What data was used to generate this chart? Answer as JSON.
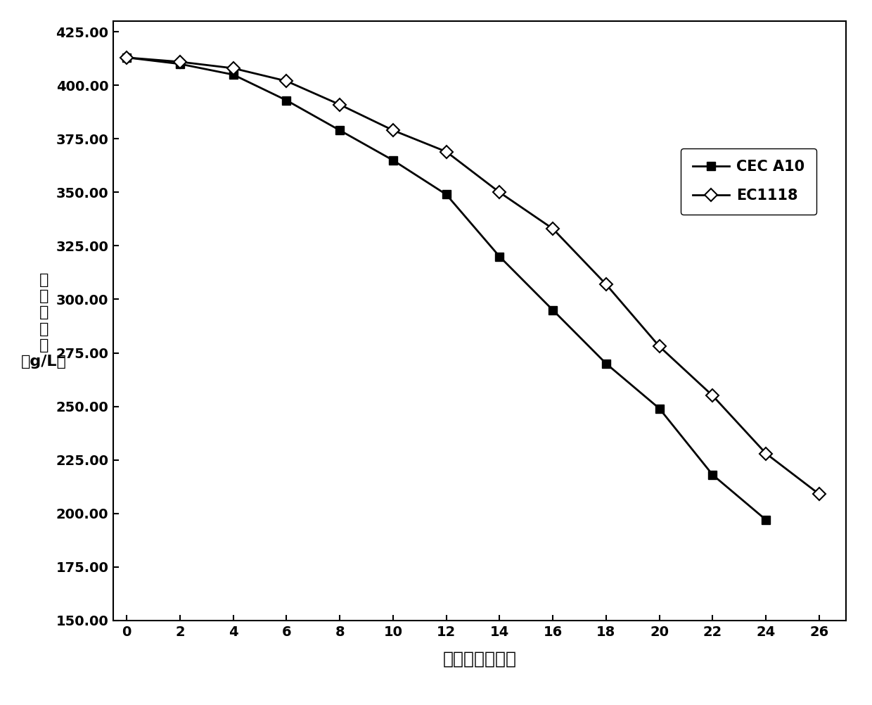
{
  "x": [
    0,
    2,
    4,
    6,
    8,
    10,
    12,
    14,
    16,
    18,
    20,
    22,
    24,
    26
  ],
  "cec_a10": [
    413,
    410,
    405,
    393,
    379,
    365,
    349,
    320,
    295,
    270,
    249,
    218,
    197,
    null
  ],
  "ec1118": [
    413,
    411,
    408,
    402,
    391,
    379,
    369,
    350,
    333,
    307,
    278,
    255,
    228,
    209
  ],
  "xlabel": "发酵时间（天）",
  "ylabel_line1": "残",
  "ylabel_line2": "糖",
  "ylabel_line3": "的",
  "ylabel_line4": "含",
  "ylabel_line5": "量",
  "ylabel_line6": "（g/L）",
  "ylabel_stacked": "残\n糖\n的\n含\n量\n（g/L）",
  "legend_cec": "CEC A10",
  "legend_ec": "EC1118",
  "ylim": [
    150,
    430
  ],
  "xlim": [
    -0.5,
    27
  ],
  "yticks": [
    150.0,
    175.0,
    200.0,
    225.0,
    250.0,
    275.0,
    300.0,
    325.0,
    350.0,
    375.0,
    400.0,
    425.0
  ],
  "xticks": [
    0,
    2,
    4,
    6,
    8,
    10,
    12,
    14,
    16,
    18,
    20,
    22,
    24,
    26
  ],
  "line_color": "#000000",
  "background_color": "#ffffff"
}
